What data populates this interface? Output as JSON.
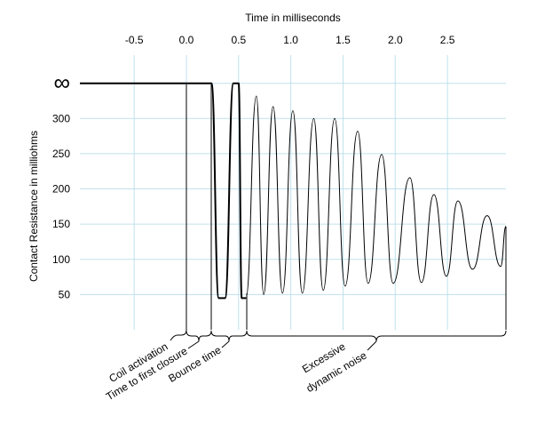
{
  "chart_data": {
    "type": "line",
    "title": "Time in milliseconds",
    "y_label": "Contact Resistance in milliohms",
    "xlim": [
      -1.02,
      3.06
    ],
    "ylim": [
      0,
      390
    ],
    "xticks": [
      -0.5,
      {
        "value": 0,
        "label": "0.0"
      },
      0.5,
      {
        "value": 1,
        "label": "1.0"
      },
      1.5,
      {
        "value": 2,
        "label": "2.0"
      },
      2.5
    ],
    "yticks": [
      50,
      100,
      150,
      200,
      250,
      300,
      {
        "value": 350,
        "label": "∞"
      }
    ],
    "grid": true,
    "series": [
      {
        "color": "#000000",
        "width": 2,
        "x": [
          -1.02,
          0.24,
          0.31,
          0.37,
          0.45,
          0.5,
          0.53,
          0.57
        ],
        "values": [
          350,
          350,
          45,
          45,
          350,
          350,
          45,
          45
        ]
      },
      {
        "color": "#000000",
        "width": 1,
        "x": [
          0.57,
          0.67,
          0.74,
          0.83,
          0.92,
          1.02,
          1.11,
          1.22,
          1.31,
          1.42,
          1.52,
          1.64,
          1.74,
          1.87,
          1.98,
          2.14,
          2.25,
          2.37,
          2.49,
          2.6,
          2.74,
          2.88,
          3.01,
          3.06
        ],
        "values": [
          45,
          332,
          50,
          317,
          52,
          311,
          52,
          300,
          56,
          300,
          62,
          282,
          66,
          249,
          66,
          216,
          67,
          192,
          76,
          183,
          86,
          162,
          90,
          147
        ]
      }
    ],
    "annotations": [
      "Coil activation",
      "Time to first closure",
      "Bounce time",
      "Excessive",
      "dynamic noise"
    ]
  }
}
